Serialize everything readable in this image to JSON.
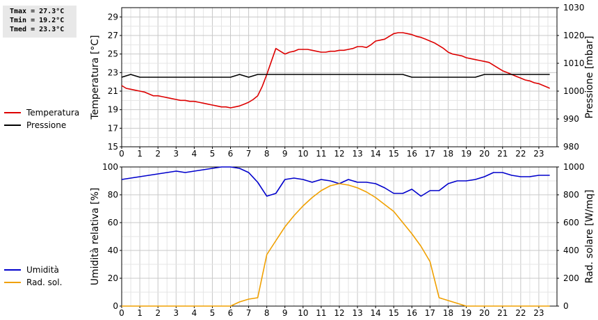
{
  "stats": {
    "tmax": "Tmax = 27.3°C",
    "tmin": "Tmin = 19.2°C",
    "tmed": "Tmed = 23.3°C"
  },
  "legend_top": [
    {
      "label": "Temperatura",
      "color": "#dd0000"
    },
    {
      "label": "Pressione",
      "color": "#000000"
    }
  ],
  "legend_bottom": [
    {
      "label": "Umidità",
      "color": "#0000cc"
    },
    {
      "label": "Rad. sol.",
      "color": "#f0a000"
    }
  ],
  "chart_data": [
    {
      "type": "line",
      "ylabel": "Temperatura [°C]",
      "y2label": "Pressione [mbar]",
      "xlim": [
        0,
        24
      ],
      "x_ticks": [
        0,
        1,
        2,
        3,
        4,
        5,
        6,
        7,
        8,
        9,
        10,
        11,
        12,
        13,
        14,
        15,
        16,
        17,
        18,
        19,
        20,
        21,
        22,
        23
      ],
      "ylim": [
        15,
        30
      ],
      "y_ticks": [
        15,
        17,
        19,
        21,
        23,
        25,
        27,
        29
      ],
      "y2lim": [
        980,
        1030
      ],
      "y2_ticks": [
        980,
        990,
        1000,
        1010,
        1020,
        1030
      ],
      "grid": true,
      "series": [
        {
          "name": "Temperatura",
          "axis": "left",
          "color": "#dd0000",
          "x": [
            0,
            0.25,
            0.5,
            0.75,
            1,
            1.25,
            1.5,
            1.75,
            2,
            2.25,
            2.5,
            2.75,
            3,
            3.25,
            3.5,
            3.75,
            4,
            4.25,
            4.5,
            4.75,
            5,
            5.25,
            5.5,
            5.75,
            6,
            6.25,
            6.5,
            6.75,
            7,
            7.25,
            7.5,
            7.75,
            8,
            8.25,
            8.5,
            8.75,
            9,
            9.25,
            9.5,
            9.75,
            10,
            10.25,
            10.5,
            10.75,
            11,
            11.25,
            11.5,
            11.75,
            12,
            12.25,
            12.5,
            12.75,
            13,
            13.25,
            13.5,
            13.75,
            14,
            14.25,
            14.5,
            14.75,
            15,
            15.25,
            15.5,
            15.75,
            16,
            16.25,
            16.5,
            16.75,
            17,
            17.25,
            17.5,
            17.75,
            18,
            18.25,
            18.5,
            18.75,
            19,
            19.25,
            19.5,
            19.75,
            20,
            20.25,
            20.5,
            20.75,
            21,
            21.25,
            21.5,
            21.75,
            22,
            22.25,
            22.5,
            22.75,
            23,
            23.25,
            23.5,
            23.6
          ],
          "y": [
            21.6,
            21.3,
            21.2,
            21.1,
            21.0,
            20.9,
            20.7,
            20.5,
            20.5,
            20.4,
            20.3,
            20.2,
            20.1,
            20.0,
            20.0,
            19.9,
            19.9,
            19.8,
            19.7,
            19.6,
            19.5,
            19.4,
            19.3,
            19.3,
            19.2,
            19.3,
            19.4,
            19.6,
            19.8,
            20.1,
            20.5,
            21.5,
            22.8,
            24.2,
            25.6,
            25.3,
            25.0,
            25.2,
            25.3,
            25.5,
            25.5,
            25.5,
            25.4,
            25.3,
            25.2,
            25.2,
            25.3,
            25.3,
            25.4,
            25.4,
            25.5,
            25.6,
            25.8,
            25.8,
            25.7,
            26.0,
            26.4,
            26.5,
            26.6,
            26.9,
            27.2,
            27.3,
            27.3,
            27.2,
            27.1,
            26.9,
            26.8,
            26.6,
            26.4,
            26.2,
            25.9,
            25.6,
            25.2,
            25.0,
            24.9,
            24.8,
            24.6,
            24.5,
            24.4,
            24.3,
            24.2,
            24.1,
            23.8,
            23.5,
            23.2,
            23.0,
            22.8,
            22.6,
            22.4,
            22.2,
            22.1,
            21.9,
            21.8,
            21.6,
            21.4,
            21.3
          ]
        },
        {
          "name": "Pressione",
          "axis": "right",
          "color": "#000000",
          "x": [
            0,
            0.5,
            1,
            1.5,
            2,
            2.5,
            3,
            3.5,
            4,
            4.5,
            5,
            5.5,
            6,
            6.5,
            7,
            7.5,
            8,
            8.5,
            9,
            9.5,
            10,
            10.5,
            11,
            11.5,
            12,
            12.5,
            13,
            13.5,
            14,
            14.5,
            15,
            15.5,
            16,
            16.5,
            17,
            17.5,
            18,
            18.5,
            19,
            19.5,
            20,
            20.5,
            21,
            21.5,
            22,
            22.5,
            23,
            23.6
          ],
          "y": [
            1005,
            1006,
            1005,
            1005,
            1005,
            1005,
            1005,
            1005,
            1005,
            1005,
            1005,
            1005,
            1005,
            1006,
            1005,
            1006,
            1006,
            1006,
            1006,
            1006,
            1006,
            1006,
            1006,
            1006,
            1006,
            1006,
            1006,
            1006,
            1006,
            1006,
            1006,
            1006,
            1005,
            1005,
            1005,
            1005,
            1005,
            1005,
            1005,
            1005,
            1006,
            1006,
            1006,
            1006,
            1006,
            1006,
            1006,
            1006
          ]
        }
      ]
    },
    {
      "type": "line",
      "ylabel": "Umidità relativa [%]",
      "y2label": "Rad. solare [W/mq]",
      "xlim": [
        0,
        24
      ],
      "x_ticks": [
        0,
        1,
        2,
        3,
        4,
        5,
        6,
        7,
        8,
        9,
        10,
        11,
        12,
        13,
        14,
        15,
        16,
        17,
        18,
        19,
        20,
        21,
        22,
        23
      ],
      "ylim": [
        0,
        100
      ],
      "y_ticks": [
        0,
        20,
        40,
        60,
        80,
        100
      ],
      "y2lim": [
        0,
        1000
      ],
      "y2_ticks": [
        0,
        200,
        400,
        600,
        800,
        1000
      ],
      "grid": true,
      "series": [
        {
          "name": "Umidità",
          "axis": "left",
          "color": "#0000cc",
          "x": [
            0,
            0.5,
            1,
            1.5,
            2,
            2.5,
            3,
            3.5,
            4,
            4.5,
            5,
            5.5,
            6,
            6.5,
            7,
            7.5,
            8,
            8.5,
            9,
            9.5,
            10,
            10.5,
            11,
            11.5,
            12,
            12.5,
            13,
            13.5,
            14,
            14.5,
            15,
            15.5,
            16,
            16.5,
            17,
            17.5,
            18,
            18.5,
            19,
            19.5,
            20,
            20.5,
            21,
            21.5,
            22,
            22.5,
            23,
            23.6
          ],
          "y": [
            91,
            92,
            93,
            94,
            95,
            96,
            97,
            96,
            97,
            98,
            99,
            100,
            100,
            99,
            96,
            89,
            79,
            81,
            91,
            92,
            91,
            89,
            91,
            90,
            88,
            91,
            89,
            89,
            88,
            85,
            81,
            81,
            84,
            79,
            83,
            83,
            88,
            90,
            90,
            91,
            93,
            96,
            96,
            94,
            93,
            93,
            94,
            94
          ]
        },
        {
          "name": "Rad. sol.",
          "axis": "right",
          "color": "#f0a000",
          "x": [
            0,
            1,
            2,
            3,
            4,
            5,
            6,
            6.5,
            7,
            7.5,
            8,
            8.5,
            9,
            9.5,
            10,
            10.5,
            11,
            11.5,
            12,
            12.5,
            13,
            13.5,
            14,
            14.5,
            15,
            15.5,
            16,
            16.5,
            17,
            17.5,
            18,
            18.5,
            19,
            20,
            21,
            22,
            23,
            23.6
          ],
          "y": [
            0,
            0,
            0,
            0,
            0,
            0,
            0,
            30,
            50,
            60,
            370,
            470,
            570,
            650,
            720,
            780,
            830,
            865,
            880,
            870,
            850,
            820,
            780,
            730,
            680,
            600,
            520,
            430,
            320,
            60,
            40,
            20,
            0,
            0,
            0,
            0,
            0,
            0
          ]
        }
      ]
    }
  ]
}
